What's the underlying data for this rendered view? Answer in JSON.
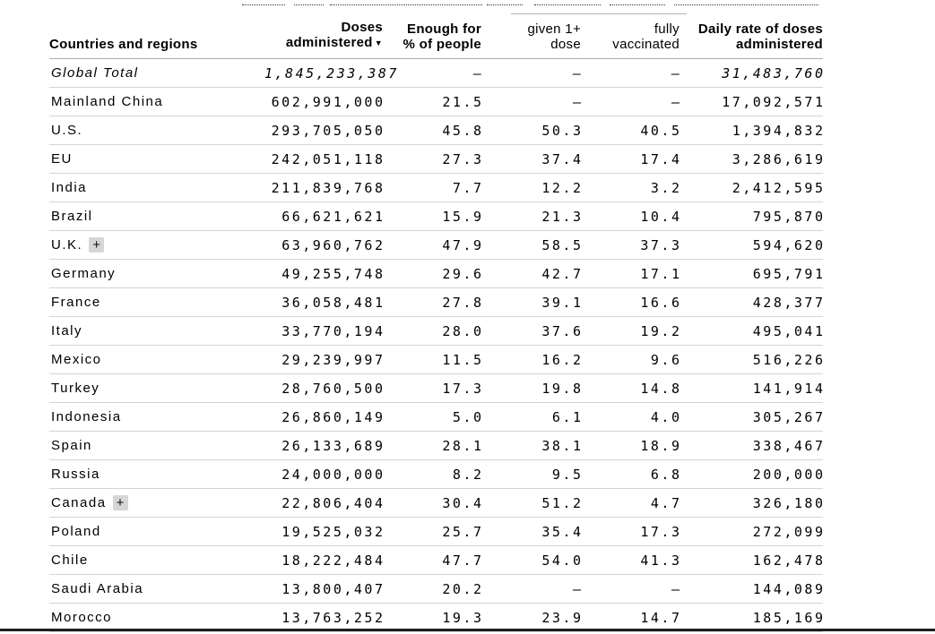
{
  "chart_data": {
    "type": "table",
    "sorted_column": "doses",
    "sort_direction": "descending",
    "columns": [
      {
        "id": "country",
        "label": "Countries and regions",
        "bold": true,
        "align": "left"
      },
      {
        "id": "doses",
        "label_lines": [
          "Doses",
          "administered"
        ],
        "sort_icon": "▼",
        "bold": true,
        "align": "right"
      },
      {
        "id": "enough",
        "label_lines": [
          "Enough for",
          "% of people"
        ],
        "bold": true,
        "align": "right"
      },
      {
        "id": "given",
        "label_lines": [
          "given 1+",
          "dose"
        ],
        "bold": false,
        "align": "right"
      },
      {
        "id": "fully",
        "label_lines": [
          "fully",
          "vaccinated"
        ],
        "bold": false,
        "align": "right"
      },
      {
        "id": "daily",
        "label_lines": [
          "Daily rate of doses",
          "administered"
        ],
        "bold": true,
        "align": "right"
      }
    ],
    "rows": [
      {
        "country": "Global Total",
        "doses": "1,845,233,387",
        "enough": "–",
        "given": "–",
        "fully": "–",
        "daily": "31,483,760",
        "italic": true,
        "has_expand": false
      },
      {
        "country": "Mainland China",
        "doses": "602,991,000",
        "enough": "21.5",
        "given": "–",
        "fully": "–",
        "daily": "17,092,571",
        "italic": false,
        "has_expand": false
      },
      {
        "country": "U.S.",
        "doses": "293,705,050",
        "enough": "45.8",
        "given": "50.3",
        "fully": "40.5",
        "daily": "1,394,832",
        "italic": false,
        "has_expand": false
      },
      {
        "country": "EU",
        "doses": "242,051,118",
        "enough": "27.3",
        "given": "37.4",
        "fully": "17.4",
        "daily": "3,286,619",
        "italic": false,
        "has_expand": false
      },
      {
        "country": "India",
        "doses": "211,839,768",
        "enough": "7.7",
        "given": "12.2",
        "fully": "3.2",
        "daily": "2,412,595",
        "italic": false,
        "has_expand": false
      },
      {
        "country": "Brazil",
        "doses": "66,621,621",
        "enough": "15.9",
        "given": "21.3",
        "fully": "10.4",
        "daily": "795,870",
        "italic": false,
        "has_expand": false
      },
      {
        "country": "U.K.",
        "doses": "63,960,762",
        "enough": "47.9",
        "given": "58.5",
        "fully": "37.3",
        "daily": "594,620",
        "italic": false,
        "has_expand": true
      },
      {
        "country": "Germany",
        "doses": "49,255,748",
        "enough": "29.6",
        "given": "42.7",
        "fully": "17.1",
        "daily": "695,791",
        "italic": false,
        "has_expand": false
      },
      {
        "country": "France",
        "doses": "36,058,481",
        "enough": "27.8",
        "given": "39.1",
        "fully": "16.6",
        "daily": "428,377",
        "italic": false,
        "has_expand": false
      },
      {
        "country": "Italy",
        "doses": "33,770,194",
        "enough": "28.0",
        "given": "37.6",
        "fully": "19.2",
        "daily": "495,041",
        "italic": false,
        "has_expand": false
      },
      {
        "country": "Mexico",
        "doses": "29,239,997",
        "enough": "11.5",
        "given": "16.2",
        "fully": "9.6",
        "daily": "516,226",
        "italic": false,
        "has_expand": false
      },
      {
        "country": "Turkey",
        "doses": "28,760,500",
        "enough": "17.3",
        "given": "19.8",
        "fully": "14.8",
        "daily": "141,914",
        "italic": false,
        "has_expand": false
      },
      {
        "country": "Indonesia",
        "doses": "26,860,149",
        "enough": "5.0",
        "given": "6.1",
        "fully": "4.0",
        "daily": "305,267",
        "italic": false,
        "has_expand": false
      },
      {
        "country": "Spain",
        "doses": "26,133,689",
        "enough": "28.1",
        "given": "38.1",
        "fully": "18.9",
        "daily": "338,467",
        "italic": false,
        "has_expand": false
      },
      {
        "country": "Russia",
        "doses": "24,000,000",
        "enough": "8.2",
        "given": "9.5",
        "fully": "6.8",
        "daily": "200,000",
        "italic": false,
        "has_expand": false
      },
      {
        "country": "Canada",
        "doses": "22,806,404",
        "enough": "30.4",
        "given": "51.2",
        "fully": "4.7",
        "daily": "326,180",
        "italic": false,
        "has_expand": true
      },
      {
        "country": "Poland",
        "doses": "19,525,032",
        "enough": "25.7",
        "given": "35.4",
        "fully": "17.3",
        "daily": "272,099",
        "italic": false,
        "has_expand": false
      },
      {
        "country": "Chile",
        "doses": "18,222,484",
        "enough": "47.7",
        "given": "54.0",
        "fully": "41.3",
        "daily": "162,478",
        "italic": false,
        "has_expand": false
      },
      {
        "country": "Saudi Arabia",
        "doses": "13,800,407",
        "enough": "20.2",
        "given": "–",
        "fully": "–",
        "daily": "144,089",
        "italic": false,
        "has_expand": false
      },
      {
        "country": "Morocco",
        "doses": "13,763,252",
        "enough": "19.3",
        "given": "23.9",
        "fully": "14.7",
        "daily": "185,169",
        "italic": false,
        "has_expand": false
      }
    ]
  },
  "ui": {
    "expand_button_label": "+"
  },
  "colors": {
    "text": "#000000",
    "row_divider": "#d4d4d4",
    "header_divider": "#adadad",
    "group_header_line": "#b5b5b5",
    "expand_button_bg": "#d6d6d6",
    "bottom_bar": "#1f1f1f",
    "background": "#ffffff"
  }
}
